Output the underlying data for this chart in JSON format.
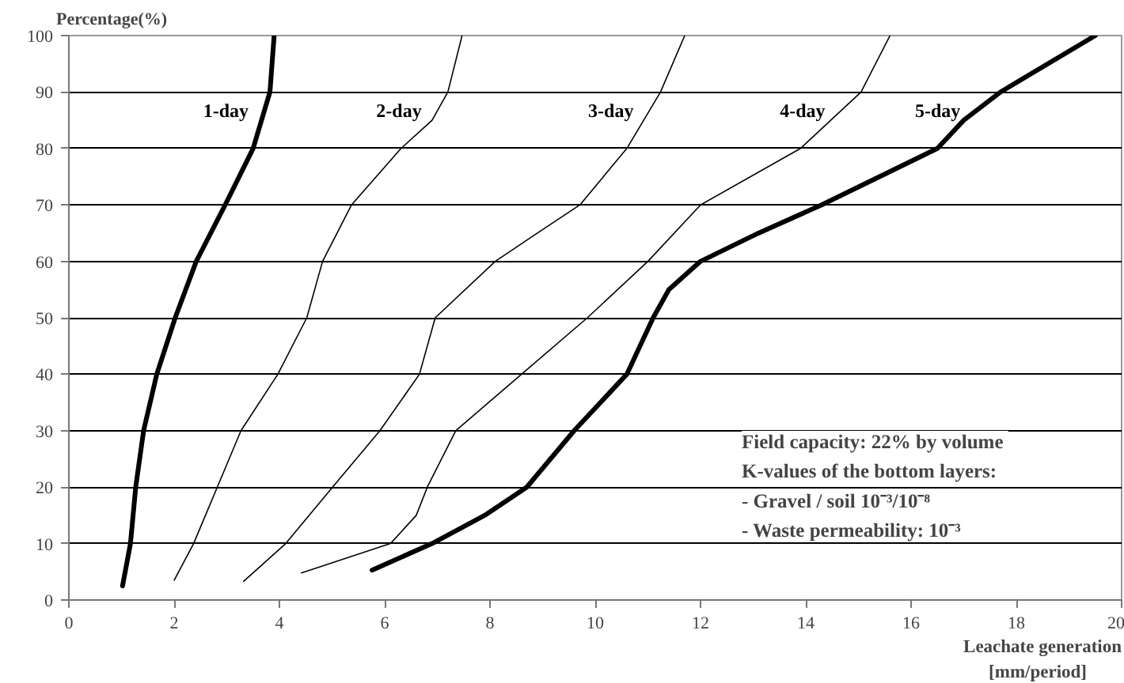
{
  "chart_data": {
    "type": "line",
    "ylabel": "Percentage(%)",
    "xlabel": "Leachate generation\n[mm/period]",
    "xlim": [
      0,
      20
    ],
    "xticks": [
      0,
      2,
      4,
      6,
      8,
      10,
      12,
      14,
      16,
      18,
      20
    ],
    "ylim": [
      0,
      100
    ],
    "yticks": [
      0,
      10,
      20,
      30,
      40,
      50,
      60,
      70,
      80,
      90,
      100
    ],
    "grid": "y",
    "marker": "none",
    "line_style": "solid",
    "series": [
      {
        "name": "1-day",
        "color": "#000000",
        "x": [
          1.02,
          1.17,
          1.27,
          1.42,
          1.67,
          2.02,
          2.42,
          2.97,
          3.5,
          3.82,
          3.9
        ],
        "values": [
          2.5,
          10,
          20,
          30,
          40,
          50,
          60,
          70,
          80,
          90,
          100
        ]
      },
      {
        "name": "2-day",
        "color": "#000000",
        "x": [
          2.0,
          2.37,
          2.82,
          3.27,
          3.97,
          4.52,
          4.82,
          5.37,
          6.31,
          6.9,
          7.2,
          7.47
        ],
        "values": [
          3.5,
          10,
          20,
          30,
          40,
          50,
          60,
          70,
          80,
          85,
          90,
          100
        ]
      },
      {
        "name": "3-day",
        "color": "#000000",
        "x": [
          3.32,
          4.12,
          5.01,
          5.91,
          6.66,
          6.96,
          8.1,
          8.9,
          9.71,
          10.6,
          11.24,
          11.7
        ],
        "values": [
          3.3,
          10,
          20,
          30,
          40,
          50,
          60,
          65,
          70,
          80,
          90,
          100
        ]
      },
      {
        "name": "4-day",
        "color": "#000000",
        "x": [
          4.42,
          6.11,
          6.6,
          6.81,
          7.35,
          8.6,
          9.85,
          11.0,
          12.0,
          13.9,
          15.05,
          15.6
        ],
        "values": [
          4.8,
          10,
          15,
          20,
          30,
          40,
          50,
          60,
          70,
          80,
          90,
          100
        ]
      },
      {
        "name": "5-day",
        "color": "#000000",
        "x": [
          5.76,
          6.9,
          7.9,
          8.7,
          9.6,
          10.6,
          11.1,
          11.4,
          12.0,
          13.1,
          14.3,
          15.4,
          16.5,
          17.0,
          17.7,
          19.5
        ],
        "values": [
          5.3,
          10,
          15,
          20,
          30,
          40,
          50,
          55,
          60,
          65,
          70,
          75,
          80,
          85,
          90,
          100
        ]
      }
    ],
    "annotations": [
      "Field capacity:  22% by volume",
      "K-values of the bottom layers:",
      "-  Gravel / soil            10⁻³/10⁻⁸",
      "-  Waste permeability: 10⁻³"
    ]
  }
}
